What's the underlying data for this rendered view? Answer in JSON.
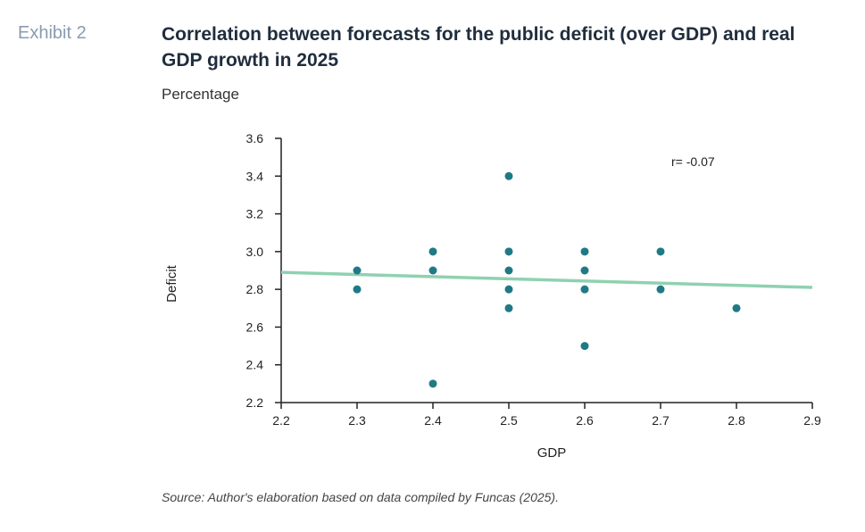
{
  "exhibit_label": "Exhibit 2",
  "title": "Correlation between forecasts for the public deficit (over GDP) and real GDP growth in 2025",
  "subtitle": "Percentage",
  "source": "Source: Author's elaboration based on data compiled by Funcas (2025).",
  "colors": {
    "points": "#1f7a86",
    "trendline": "#8fd1b0",
    "axis": "#222222"
  },
  "chart_data": {
    "type": "scatter",
    "xlabel": "GDP",
    "ylabel": "Deficit",
    "xlim": [
      2.2,
      2.9
    ],
    "ylim": [
      2.2,
      3.6
    ],
    "xticks": [
      "2.2",
      "2.3",
      "2.4",
      "2.5",
      "2.6",
      "2.7",
      "2.8",
      "2.9"
    ],
    "yticks": [
      "2.2",
      "2.4",
      "2.6",
      "2.8",
      "3.0",
      "3.2",
      "3.4",
      "3.6"
    ],
    "annotation": "r= -0.07",
    "trendline": {
      "x": [
        2.2,
        2.9
      ],
      "y": [
        2.89,
        2.81
      ]
    },
    "points": [
      {
        "x": 2.3,
        "y": 2.9
      },
      {
        "x": 2.3,
        "y": 2.8
      },
      {
        "x": 2.4,
        "y": 3.0
      },
      {
        "x": 2.4,
        "y": 2.9
      },
      {
        "x": 2.4,
        "y": 2.3
      },
      {
        "x": 2.5,
        "y": 3.4
      },
      {
        "x": 2.5,
        "y": 3.0
      },
      {
        "x": 2.5,
        "y": 2.9
      },
      {
        "x": 2.5,
        "y": 2.8
      },
      {
        "x": 2.5,
        "y": 2.7
      },
      {
        "x": 2.6,
        "y": 3.0
      },
      {
        "x": 2.6,
        "y": 2.9
      },
      {
        "x": 2.6,
        "y": 2.8
      },
      {
        "x": 2.6,
        "y": 2.5
      },
      {
        "x": 2.7,
        "y": 3.0
      },
      {
        "x": 2.7,
        "y": 2.8
      },
      {
        "x": 2.8,
        "y": 2.7
      }
    ]
  }
}
